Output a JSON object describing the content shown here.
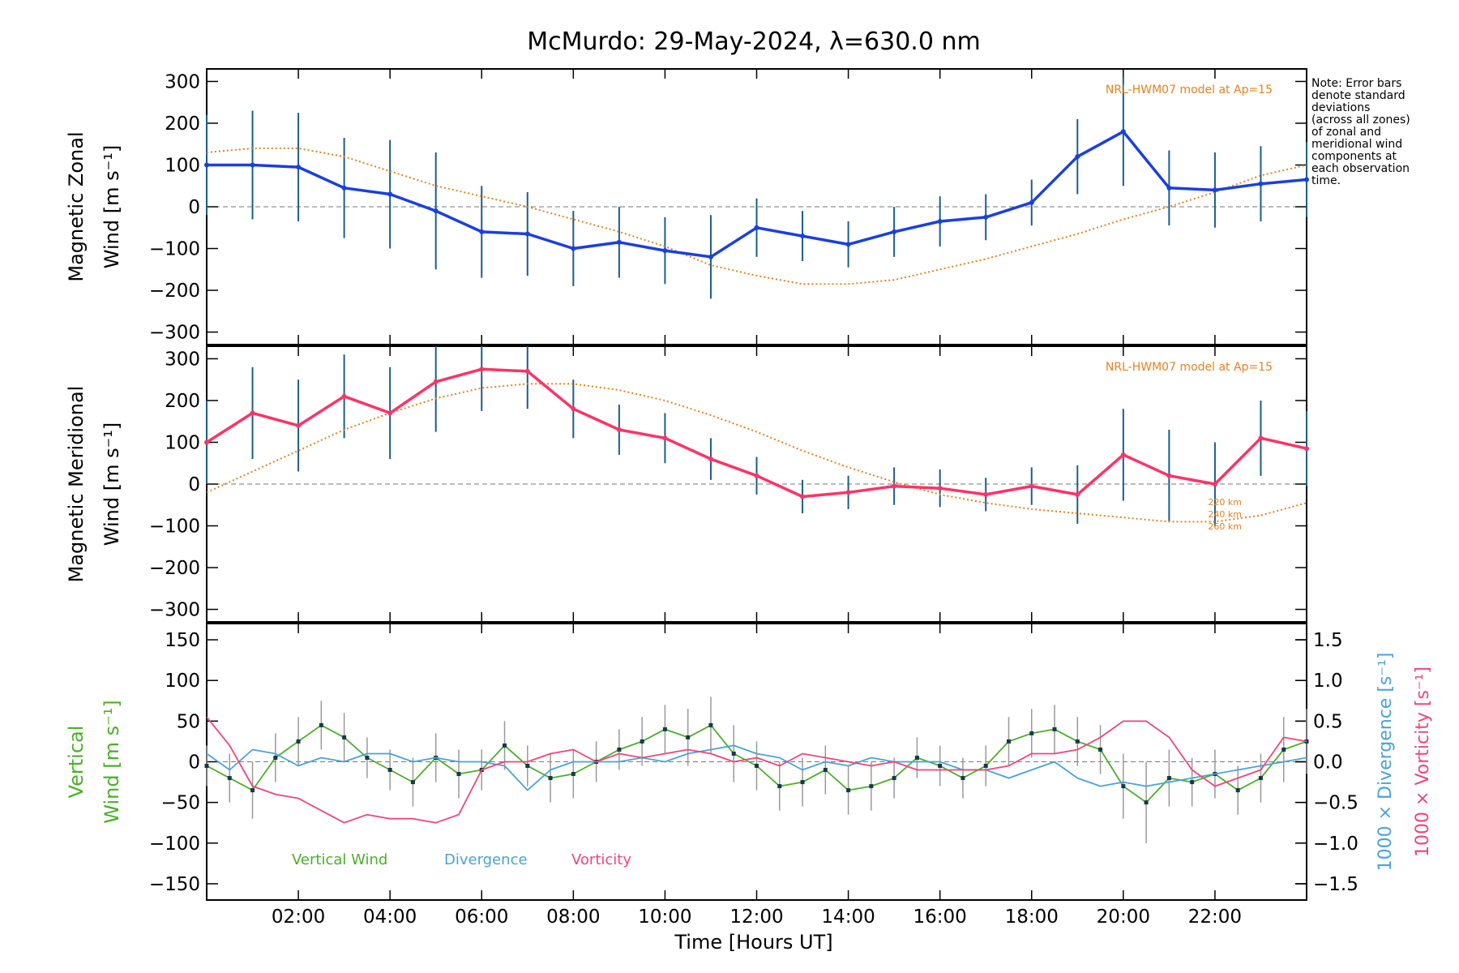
{
  "title": "McMurdo: 29-May-2024, λ=630.0 nm",
  "x_axis": {
    "label": "Time [Hours UT]",
    "range": [
      0,
      24
    ],
    "ticks": [
      2,
      4,
      6,
      8,
      10,
      12,
      14,
      16,
      18,
      20,
      22
    ],
    "tick_labels": [
      "02:00",
      "04:00",
      "06:00",
      "08:00",
      "10:00",
      "12:00",
      "14:00",
      "16:00",
      "18:00",
      "20:00",
      "22:00"
    ]
  },
  "note": "Note: Error bars\ndenote standard\ndeviations\n(across all zones)\nof zonal and\nmeridional wind\ncomponents at\neach observation\ntime.",
  "chart_data": [
    {
      "type": "line",
      "panel": "zonal",
      "ylabel_line1": "Magnetic Zonal",
      "ylabel_line2": "Wind [m s⁻¹]",
      "ylim": [
        -330,
        330
      ],
      "yticks": [
        -300,
        -200,
        -100,
        0,
        100,
        200,
        300
      ],
      "ytick_labels": [
        "−300",
        "−200",
        "−100",
        "0",
        "100",
        "200",
        "300"
      ],
      "model_label": "NRL-HWM07 model at Ap=15",
      "colors": {
        "mean": "#1a3fe0",
        "errorbar": "#1a5e8a",
        "model": "#e8821e",
        "zones": "#b0a8e0"
      },
      "x": [
        0,
        1,
        2,
        3,
        4,
        5,
        6,
        7,
        8,
        9,
        10,
        11,
        12,
        13,
        14,
        15,
        16,
        17,
        18,
        19,
        20,
        21,
        22,
        23,
        24
      ],
      "series": [
        {
          "role": "mean",
          "values": [
            100,
            100,
            95,
            45,
            30,
            -10,
            -60,
            -65,
            -100,
            -85,
            -105,
            -120,
            -50,
            -70,
            -90,
            -60,
            -35,
            -25,
            10,
            120,
            180,
            45,
            40,
            55,
            65
          ],
          "sd": [
            120,
            130,
            130,
            120,
            130,
            140,
            110,
            100,
            90,
            85,
            80,
            100,
            70,
            60,
            55,
            60,
            60,
            55,
            55,
            90,
            130,
            90,
            90,
            90,
            90
          ]
        },
        {
          "role": "model",
          "values": [
            130,
            140,
            140,
            120,
            85,
            50,
            25,
            0,
            -30,
            -60,
            -95,
            -140,
            -165,
            -185,
            -185,
            -175,
            -150,
            -125,
            -95,
            -65,
            -30,
            0,
            35,
            75,
            100
          ]
        }
      ]
    },
    {
      "type": "line",
      "panel": "meridional",
      "ylabel_line1": "Magnetic Meridional",
      "ylabel_line2": "Wind [m s⁻¹]",
      "ylim": [
        -330,
        330
      ],
      "yticks": [
        -300,
        -200,
        -100,
        0,
        100,
        200,
        300
      ],
      "ytick_labels": [
        "−300",
        "−200",
        "−100",
        "0",
        "100",
        "200",
        "300"
      ],
      "model_label": "NRL-HWM07 model at Ap=15",
      "model_heights": [
        "220 km",
        "240 km",
        "260 km"
      ],
      "colors": {
        "mean": "#ff3366",
        "errorbar": "#1a5e8a",
        "model": "#e8821e",
        "zones": "#b0a8e0"
      },
      "x": [
        0,
        1,
        2,
        3,
        4,
        5,
        6,
        7,
        8,
        9,
        10,
        11,
        12,
        13,
        14,
        15,
        16,
        17,
        18,
        19,
        20,
        21,
        22,
        23,
        24
      ],
      "series": [
        {
          "role": "mean",
          "values": [
            100,
            170,
            140,
            210,
            170,
            245,
            275,
            270,
            180,
            130,
            110,
            60,
            20,
            -30,
            -20,
            -5,
            -10,
            -25,
            -5,
            -25,
            70,
            20,
            0,
            110,
            85
          ],
          "sd": [
            100,
            110,
            110,
            100,
            110,
            120,
            100,
            90,
            70,
            60,
            60,
            50,
            45,
            40,
            40,
            45,
            45,
            40,
            45,
            70,
            110,
            110,
            100,
            90,
            90
          ]
        },
        {
          "role": "model",
          "values": [
            -20,
            30,
            80,
            130,
            170,
            205,
            230,
            240,
            240,
            225,
            200,
            165,
            125,
            80,
            40,
            5,
            -25,
            -45,
            -60,
            -70,
            -80,
            -90,
            -90,
            -75,
            -45
          ]
        }
      ]
    },
    {
      "type": "line",
      "panel": "vertical",
      "ylabel_line1": "Vertical",
      "ylabel_line2": "Wind [m s⁻¹]",
      "ylabel_right1": "1000 × Divergence [s⁻¹]",
      "ylabel_right2": "1000 × Vorticity [s⁻¹]",
      "ylim": [
        -170,
        170
      ],
      "yticks": [
        -150,
        -100,
        -50,
        0,
        50,
        100,
        150
      ],
      "ytick_labels": [
        "−150",
        "−100",
        "−50",
        "0",
        "50",
        "100",
        "150"
      ],
      "ylim_right": [
        -1.7,
        1.7
      ],
      "yticks_right": [
        -1.5,
        -1.0,
        -0.5,
        0.0,
        0.5,
        1.0,
        1.5
      ],
      "ytick_labels_right": [
        "−1.5",
        "−1.0",
        "−0.5",
        "0.0",
        "0.5",
        "1.0",
        "1.5"
      ],
      "x": [
        0,
        0.5,
        1,
        1.5,
        2,
        2.5,
        3,
        3.5,
        4,
        4.5,
        5,
        5.5,
        6,
        6.5,
        7,
        7.5,
        8,
        8.5,
        9,
        9.5,
        10,
        10.5,
        11,
        11.5,
        12,
        12.5,
        13,
        13.5,
        14,
        14.5,
        15,
        15.5,
        16,
        16.5,
        17,
        17.5,
        18,
        18.5,
        19,
        19.5,
        20,
        20.5,
        21,
        21.5,
        22,
        22.5,
        23,
        23.5,
        24
      ],
      "series": [
        {
          "name": "Vertical Wind",
          "color": "#4caf2a",
          "axis": "left",
          "values": [
            -5,
            -20,
            -35,
            5,
            25,
            45,
            30,
            5,
            -10,
            -25,
            5,
            -15,
            -10,
            20,
            -5,
            -20,
            -15,
            0,
            15,
            25,
            40,
            30,
            45,
            10,
            -5,
            -30,
            -25,
            -10,
            -35,
            -30,
            -20,
            5,
            -5,
            -20,
            -5,
            25,
            35,
            40,
            25,
            15,
            -30,
            -50,
            -20,
            -25,
            -15,
            -35,
            -20,
            15,
            25
          ],
          "sd": [
            25,
            30,
            35,
            30,
            30,
            30,
            30,
            25,
            25,
            30,
            30,
            30,
            25,
            30,
            25,
            30,
            30,
            25,
            25,
            30,
            30,
            35,
            35,
            35,
            30,
            30,
            30,
            30,
            30,
            30,
            25,
            25,
            25,
            25,
            25,
            30,
            30,
            30,
            30,
            30,
            40,
            50,
            35,
            30,
            30,
            30,
            30,
            40,
            40
          ]
        },
        {
          "name": "Divergence",
          "color": "#4aa3d8",
          "axis": "right",
          "values": [
            0.1,
            -0.1,
            0.15,
            0.1,
            -0.05,
            0.05,
            0.0,
            0.1,
            0.1,
            0.0,
            0.05,
            0.0,
            0.0,
            -0.05,
            -0.35,
            -0.1,
            0.0,
            0.0,
            0.0,
            0.05,
            0.0,
            0.1,
            0.15,
            0.2,
            0.1,
            0.05,
            -0.1,
            0.0,
            -0.05,
            0.05,
            0.0,
            0.0,
            0.0,
            -0.1,
            -0.1,
            -0.2,
            -0.1,
            0.0,
            -0.2,
            -0.3,
            -0.25,
            -0.3,
            -0.25,
            -0.2,
            -0.15,
            -0.1,
            -0.05,
            0.0,
            0.05
          ]
        },
        {
          "name": "Vorticity",
          "color": "#f0457a",
          "axis": "right",
          "values": [
            0.55,
            0.2,
            -0.3,
            -0.4,
            -0.45,
            -0.6,
            -0.75,
            -0.65,
            -0.7,
            -0.7,
            -0.75,
            -0.65,
            -0.1,
            0.0,
            0.0,
            0.1,
            0.15,
            0.0,
            0.1,
            0.05,
            0.1,
            0.15,
            0.1,
            0.0,
            0.05,
            -0.05,
            0.1,
            0.05,
            0.0,
            -0.05,
            0.0,
            -0.1,
            -0.1,
            -0.1,
            -0.1,
            -0.05,
            0.1,
            0.1,
            0.15,
            0.3,
            0.5,
            0.5,
            0.3,
            -0.1,
            -0.3,
            -0.2,
            -0.1,
            0.3,
            0.25
          ]
        }
      ]
    }
  ]
}
